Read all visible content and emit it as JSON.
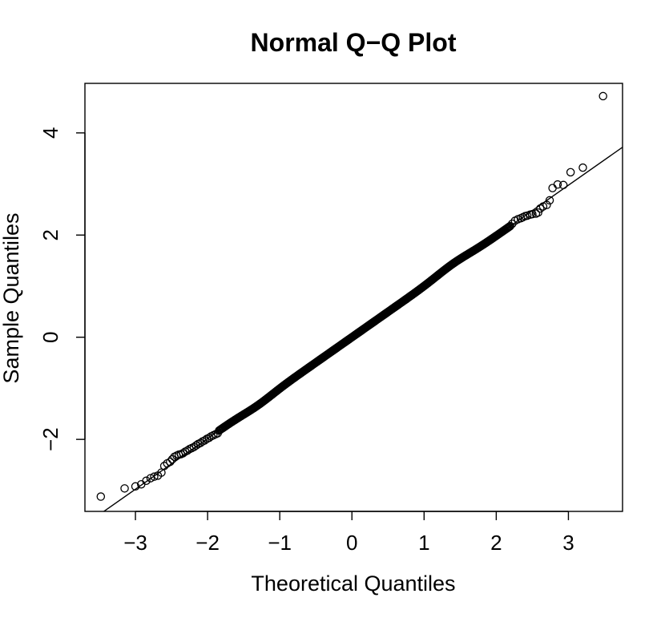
{
  "chart_data": {
    "type": "scatter",
    "title": "Normal Q−Q Plot",
    "xlabel": "Theoretical Quantiles",
    "ylabel": "Sample Quantiles",
    "xlim": [
      -3.7,
      3.75
    ],
    "ylim": [
      -3.41,
      4.97
    ],
    "xticks": [
      -3,
      -2,
      -1,
      0,
      1,
      2,
      3
    ],
    "xtick_labels": [
      "−3",
      "−2",
      "−1",
      "0",
      "1",
      "2",
      "3"
    ],
    "yticks": [
      -2,
      0,
      2,
      4
    ],
    "ytick_labels": [
      "−2",
      "0",
      "2",
      "4"
    ],
    "grid": false,
    "legend": "none",
    "reference_line": {
      "slope": 0.992,
      "intercept": 0.0
    },
    "series": [
      {
        "points": [
          [
            -3.48,
            -3.12
          ],
          [
            -3.15,
            -2.96
          ],
          [
            -3.0,
            -2.92
          ],
          [
            -2.92,
            -2.88
          ],
          [
            -2.85,
            -2.81
          ],
          [
            -2.79,
            -2.76
          ],
          [
            -2.74,
            -2.73
          ],
          [
            -2.69,
            -2.71
          ],
          [
            -2.64,
            -2.65
          ],
          [
            -2.6,
            -2.52
          ],
          [
            -2.56,
            -2.47
          ],
          [
            -2.52,
            -2.44
          ],
          [
            -2.49,
            -2.39
          ],
          [
            -2.46,
            -2.34
          ],
          [
            -2.43,
            -2.32
          ],
          [
            -2.4,
            -2.3
          ],
          [
            -2.37,
            -2.29
          ],
          [
            -2.34,
            -2.27
          ],
          [
            -2.31,
            -2.24
          ],
          [
            -2.28,
            -2.22
          ],
          [
            -2.25,
            -2.19
          ],
          [
            -2.22,
            -2.17
          ],
          [
            -2.19,
            -2.15
          ],
          [
            -2.16,
            -2.12
          ],
          [
            -2.13,
            -2.09
          ],
          [
            -2.1,
            -2.07
          ],
          [
            -2.07,
            -2.04
          ],
          [
            -2.04,
            -2.02
          ],
          [
            -2.01,
            -1.99
          ],
          [
            -1.98,
            -1.97
          ],
          [
            -1.95,
            -1.94
          ],
          [
            -1.92,
            -1.92
          ],
          [
            -1.89,
            -1.9
          ],
          [
            -1.86,
            -1.88
          ],
          [
            2.22,
            2.22
          ],
          [
            2.26,
            2.28
          ],
          [
            2.3,
            2.31
          ],
          [
            2.34,
            2.33
          ],
          [
            2.37,
            2.35
          ],
          [
            2.4,
            2.37
          ],
          [
            2.43,
            2.38
          ],
          [
            2.47,
            2.4
          ],
          [
            2.5,
            2.41
          ],
          [
            2.55,
            2.42
          ],
          [
            2.58,
            2.44
          ],
          [
            2.61,
            2.52
          ],
          [
            2.65,
            2.56
          ],
          [
            2.7,
            2.59
          ],
          [
            2.74,
            2.68
          ],
          [
            2.78,
            2.92
          ],
          [
            2.85,
            2.99
          ],
          [
            2.93,
            2.98
          ],
          [
            3.03,
            3.23
          ],
          [
            3.2,
            3.32
          ],
          [
            3.48,
            4.72
          ]
        ],
        "dense_band": {
          "x_range": [
            -1.84,
            2.2
          ],
          "step": 0.012,
          "y_function": "0.992*x - 0.04*exp(-((x+1.3)^2)/0.08) + 0.05*exp(-((x-1.4)^2)/0.1)"
        }
      }
    ]
  }
}
